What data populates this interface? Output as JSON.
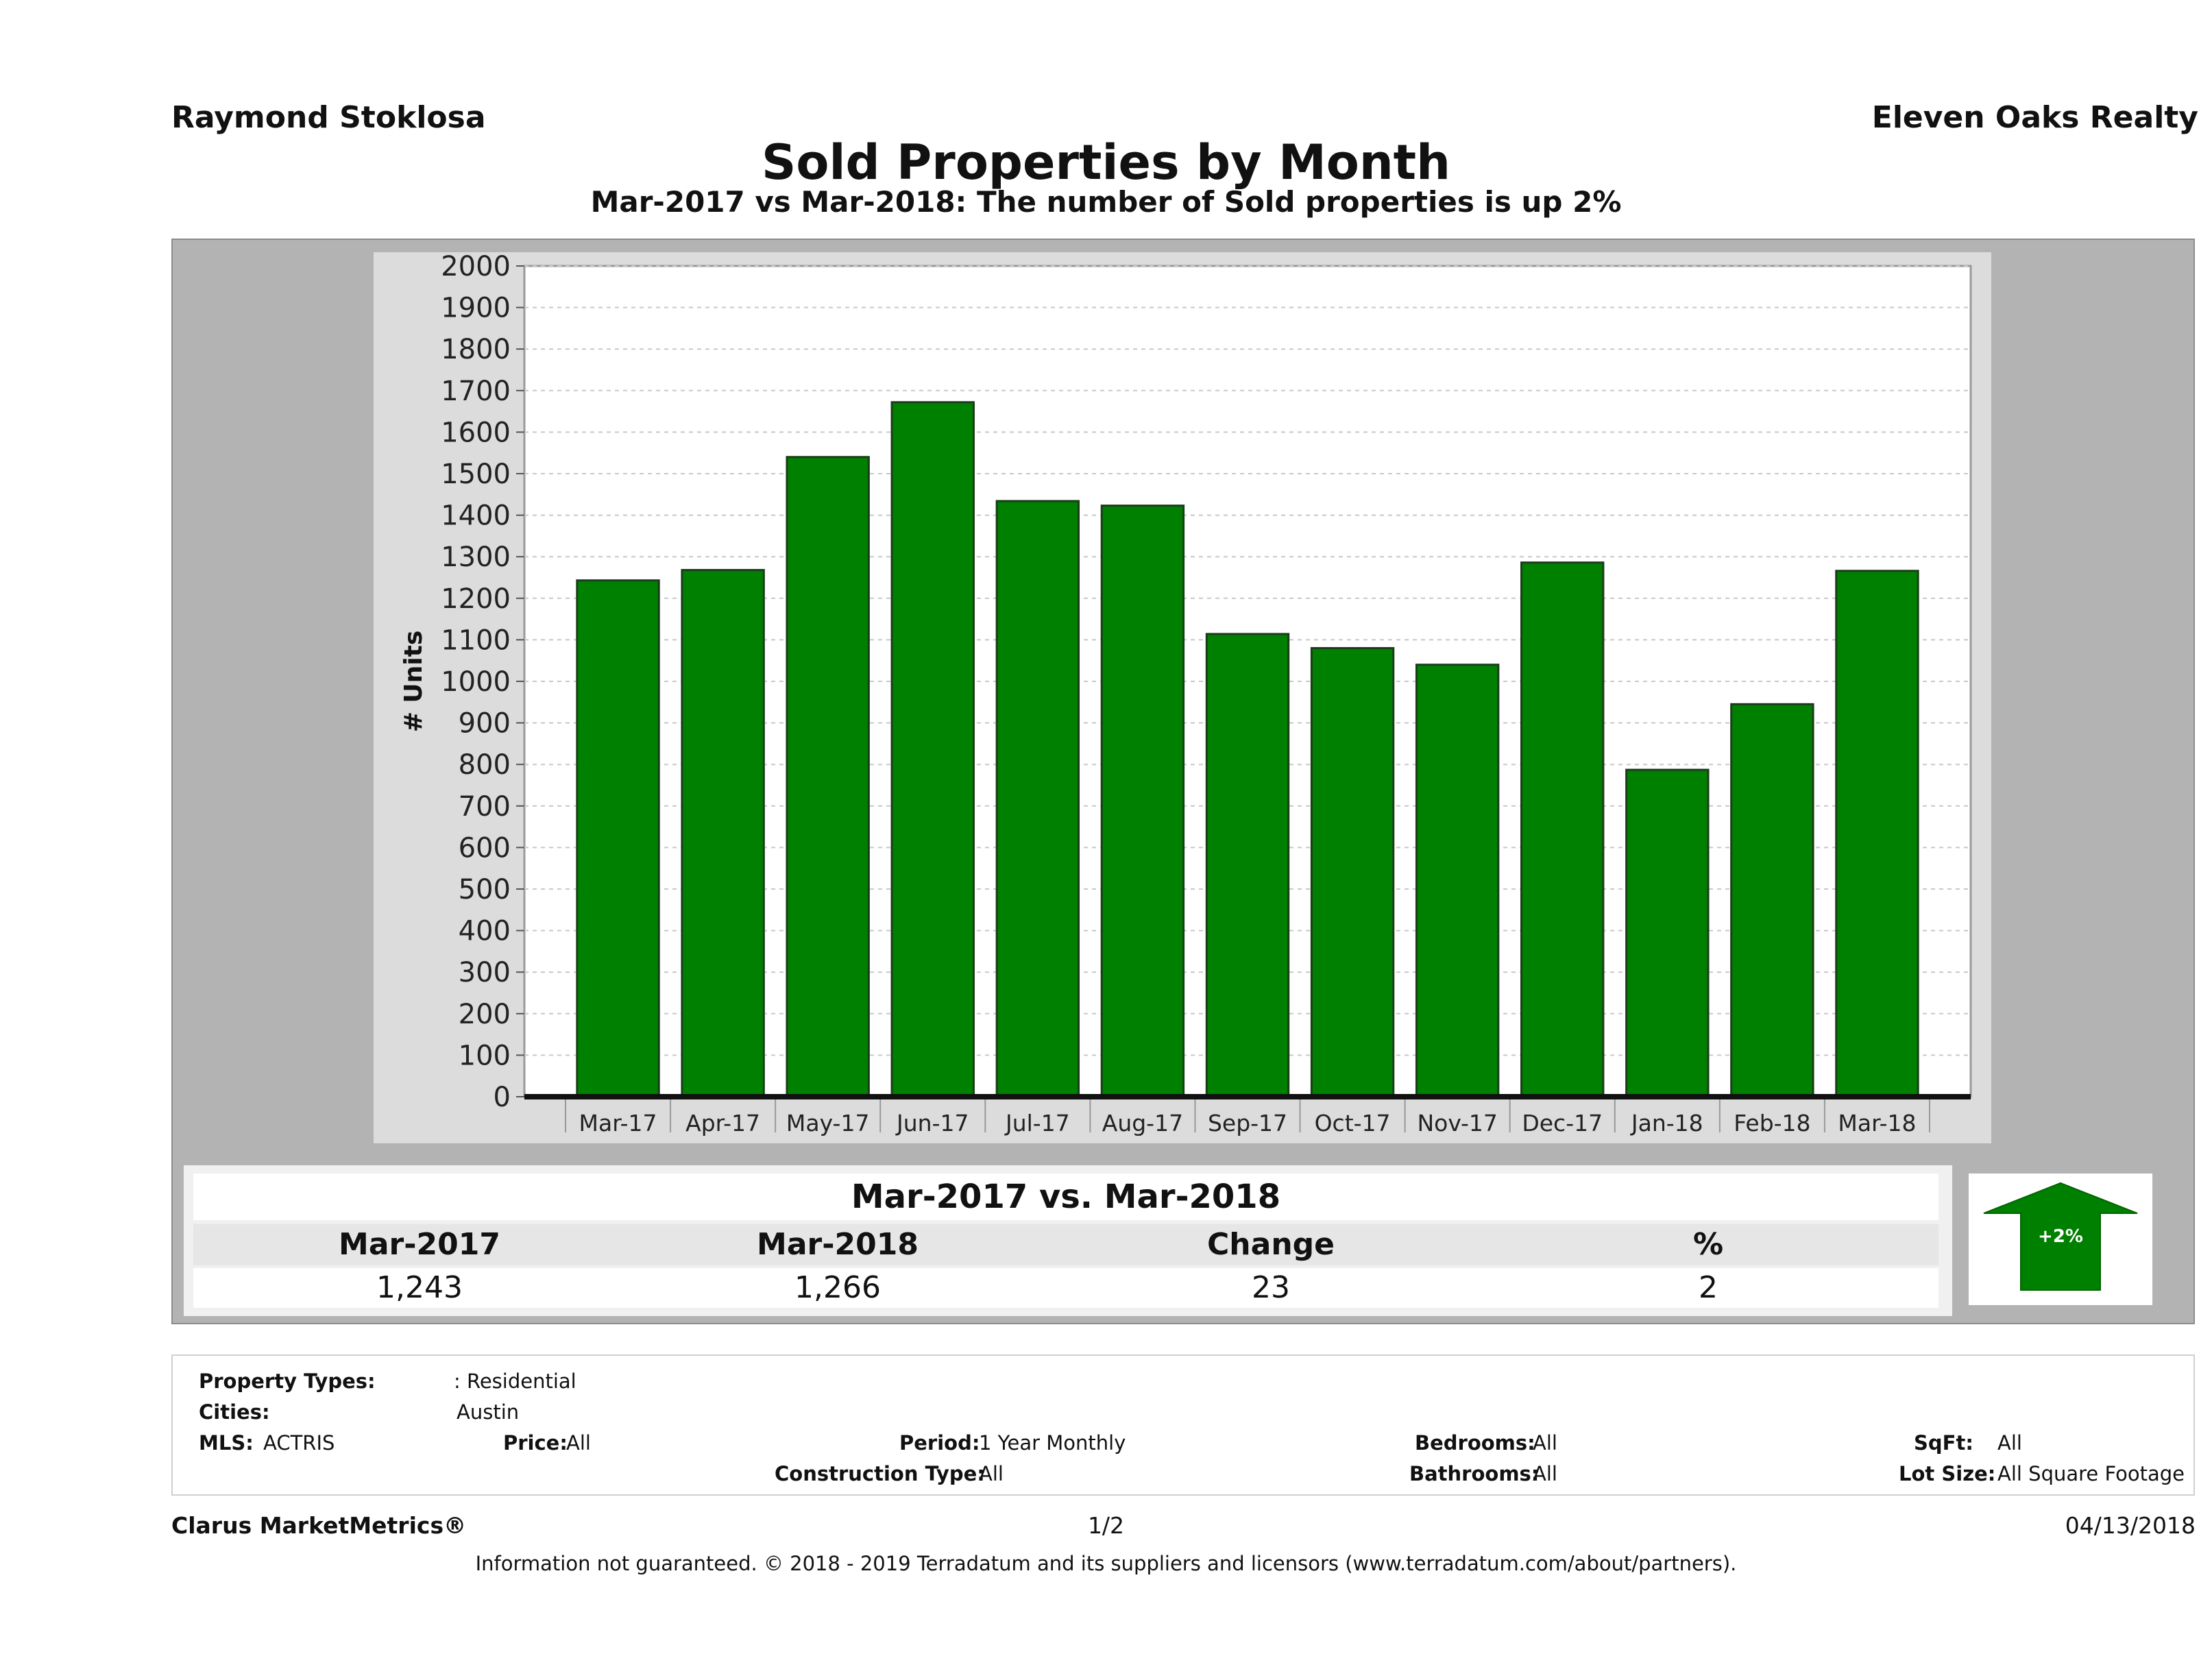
{
  "header": {
    "agent": "Raymond Stoklosa",
    "company": "Eleven Oaks Realty",
    "title": "Sold Properties by Month",
    "subtitle": "Mar-2017 vs Mar-2018: The number of Sold  properties is up 2%"
  },
  "chart_data": {
    "type": "bar",
    "ylabel": "# Units",
    "xlabel": "",
    "categories": [
      "Mar-17",
      "Apr-17",
      "May-17",
      "Jun-17",
      "Jul-17",
      "Aug-17",
      "Sep-17",
      "Oct-17",
      "Nov-17",
      "Dec-17",
      "Jan-18",
      "Feb-18",
      "Mar-18"
    ],
    "values": [
      1243,
      1268,
      1540,
      1672,
      1434,
      1423,
      1114,
      1080,
      1040,
      1286,
      787,
      945,
      1266
    ],
    "ylim": [
      0,
      2000
    ],
    "yticks": [
      0,
      100,
      200,
      300,
      400,
      500,
      600,
      700,
      800,
      900,
      1000,
      1100,
      1200,
      1300,
      1400,
      1500,
      1600,
      1700,
      1800,
      1900,
      2000
    ],
    "grid": true,
    "bar_color": "#008000",
    "plot_background": "#ffffff",
    "frame_background": "#dcdcdc"
  },
  "comparison": {
    "title": "Mar-2017 vs. Mar-2018",
    "headers": [
      "Mar-2017",
      "Mar-2018",
      "Change",
      "%"
    ],
    "values": [
      "1,243",
      "1,266",
      "23",
      "2"
    ],
    "badge": "+2%",
    "badge_color": "#008000",
    "direction": "up-arrow-icon"
  },
  "filters": {
    "property_types_label": "Property Types:",
    "property_types_value": ": Residential",
    "cities_label": "Cities:",
    "cities_value": "Austin",
    "mls_label": "MLS:",
    "mls_value": "ACTRIS",
    "price_label": "Price:",
    "price_value": "All",
    "period_label": "Period:",
    "period_value": "1 Year Monthly",
    "construction_label": "Construction Type:",
    "construction_value": "All",
    "bedrooms_label": "Bedrooms:",
    "bedrooms_value": "All",
    "bathrooms_label": "Bathrooms:",
    "bathrooms_value": "All",
    "sqft_label": "SqFt:",
    "sqft_value": "All",
    "lotsize_label": "Lot Size:",
    "lotsize_value": "All Square Footage"
  },
  "footer": {
    "brand": "Clarus MarketMetrics®",
    "page": "1/2",
    "date": "04/13/2018",
    "disclaimer": "Information not guaranteed. © 2018 - 2019 Terradatum and its suppliers and licensors (www.terradatum.com/about/partners)."
  }
}
